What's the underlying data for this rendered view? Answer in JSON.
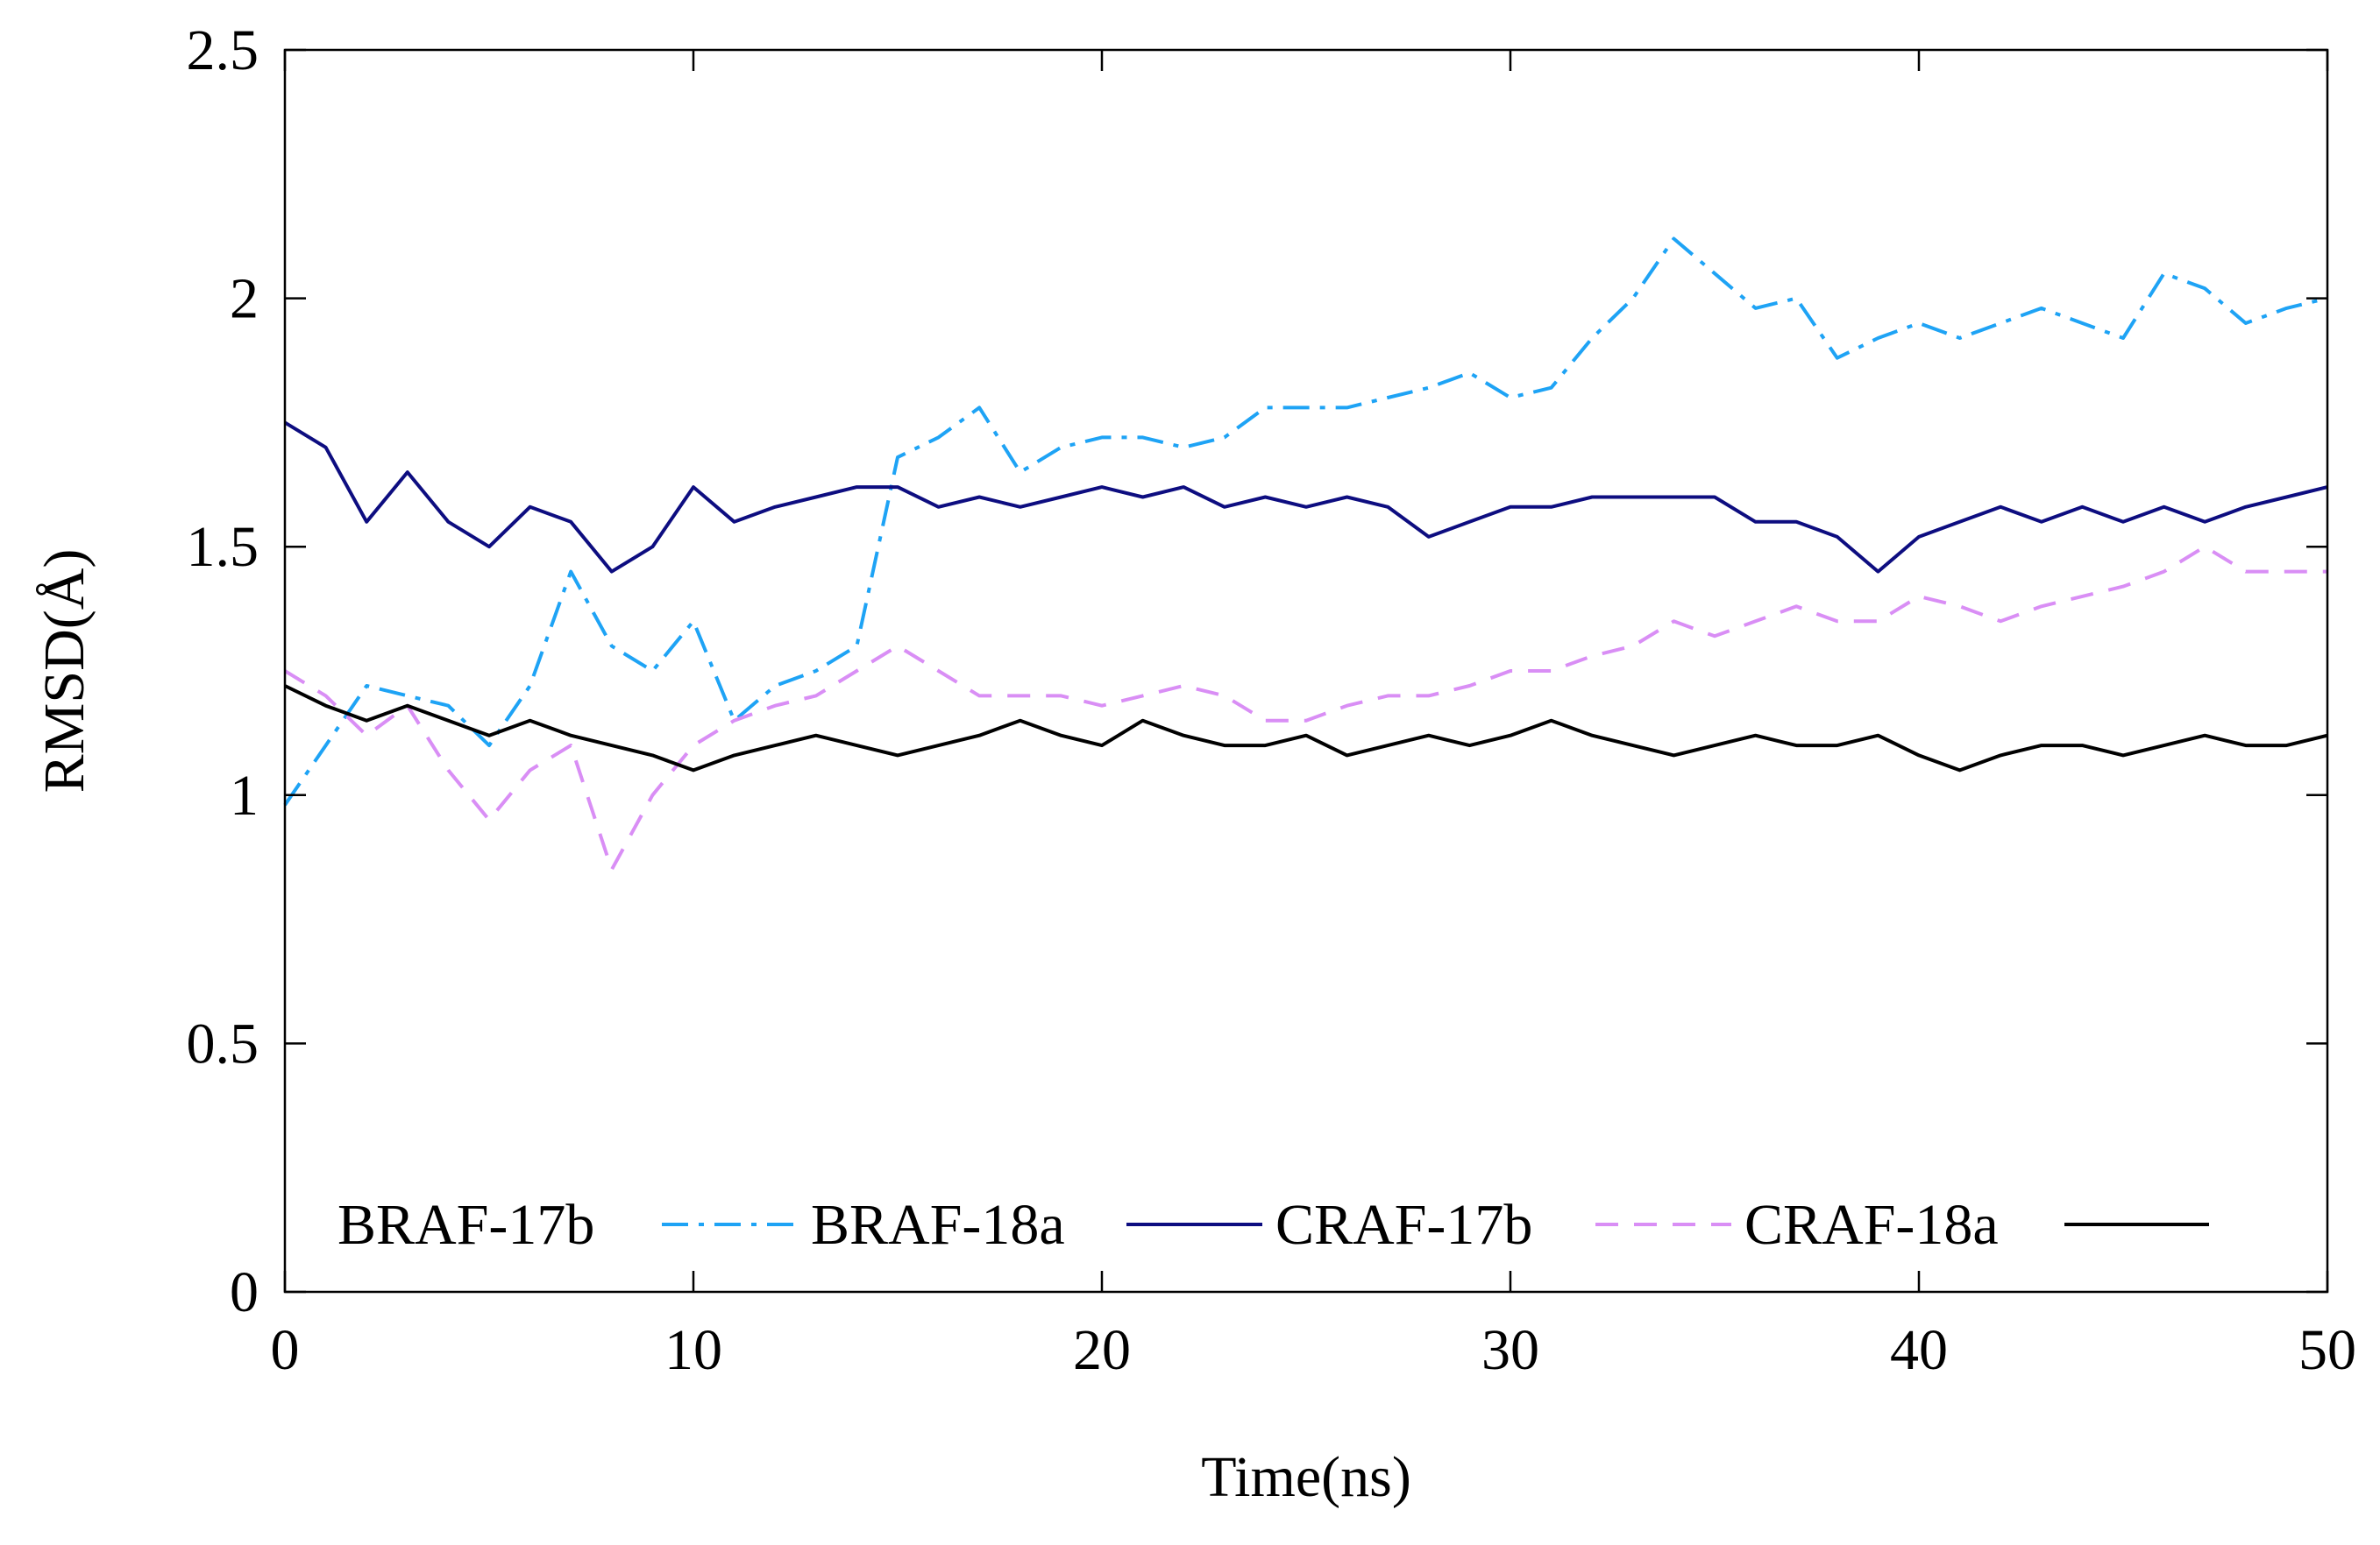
{
  "chart_data": {
    "type": "line",
    "title": "",
    "xlabel": "Time(ns)",
    "ylabel": "RMSD(Å)",
    "xlim": [
      0,
      50
    ],
    "ylim": [
      0,
      2.5
    ],
    "x_ticks": [
      0,
      10,
      20,
      30,
      40,
      50
    ],
    "x_tick_labels": [
      "0",
      "10",
      "20",
      "30",
      "40",
      "50"
    ],
    "y_ticks": [
      0,
      0.5,
      1,
      1.5,
      2,
      2.5
    ],
    "y_tick_labels": [
      "0",
      "0.5",
      "1",
      "1.5",
      "2",
      "2.5"
    ],
    "grid": false,
    "legend_position": "bottom",
    "series": [
      {
        "name": "BRAF-17b",
        "color": "#1ea3f5",
        "dash": "dashdot",
        "x": [
          0,
          1,
          2,
          3,
          4,
          5,
          6,
          7,
          8,
          9,
          10,
          11,
          12,
          13,
          14,
          15,
          16,
          17,
          18,
          19,
          20,
          21,
          22,
          23,
          24,
          25,
          26,
          27,
          28,
          29,
          30,
          31,
          32,
          33,
          34,
          35,
          36,
          37,
          38,
          39,
          40,
          41,
          42,
          43,
          44,
          45,
          46,
          47,
          48,
          49,
          50
        ],
        "values": [
          0.98,
          1.1,
          1.22,
          1.2,
          1.18,
          1.1,
          1.22,
          1.45,
          1.3,
          1.25,
          1.35,
          1.15,
          1.22,
          1.25,
          1.3,
          1.68,
          1.72,
          1.78,
          1.65,
          1.7,
          1.72,
          1.72,
          1.7,
          1.72,
          1.78,
          1.78,
          1.78,
          1.8,
          1.82,
          1.85,
          1.8,
          1.82,
          1.92,
          2.0,
          2.12,
          2.05,
          1.98,
          2.0,
          1.88,
          1.92,
          1.95,
          1.92,
          1.95,
          1.98,
          1.95,
          1.92,
          2.05,
          2.02,
          1.95,
          1.98,
          2.0
        ]
      },
      {
        "name": "BRAF-18a",
        "color": "#0d0d80",
        "dash": "solid",
        "x": [
          0,
          1,
          2,
          3,
          4,
          5,
          6,
          7,
          8,
          9,
          10,
          11,
          12,
          13,
          14,
          15,
          16,
          17,
          18,
          19,
          20,
          21,
          22,
          23,
          24,
          25,
          26,
          27,
          28,
          29,
          30,
          31,
          32,
          33,
          34,
          35,
          36,
          37,
          38,
          39,
          40,
          41,
          42,
          43,
          44,
          45,
          46,
          47,
          48,
          49,
          50
        ],
        "values": [
          1.75,
          1.7,
          1.55,
          1.65,
          1.55,
          1.5,
          1.58,
          1.55,
          1.45,
          1.5,
          1.62,
          1.55,
          1.58,
          1.6,
          1.62,
          1.62,
          1.58,
          1.6,
          1.58,
          1.6,
          1.62,
          1.6,
          1.62,
          1.58,
          1.6,
          1.58,
          1.6,
          1.58,
          1.52,
          1.55,
          1.58,
          1.58,
          1.6,
          1.6,
          1.6,
          1.6,
          1.55,
          1.55,
          1.52,
          1.45,
          1.52,
          1.55,
          1.58,
          1.55,
          1.58,
          1.55,
          1.58,
          1.55,
          1.58,
          1.6,
          1.62
        ]
      },
      {
        "name": "CRAF-17b",
        "color": "#d98ef5",
        "dash": "dashed",
        "x": [
          0,
          1,
          2,
          3,
          4,
          5,
          6,
          7,
          8,
          9,
          10,
          11,
          12,
          13,
          14,
          15,
          16,
          17,
          18,
          19,
          20,
          21,
          22,
          23,
          24,
          25,
          26,
          27,
          28,
          29,
          30,
          31,
          32,
          33,
          34,
          35,
          36,
          37,
          38,
          39,
          40,
          41,
          42,
          43,
          44,
          45,
          46,
          47,
          48,
          49,
          50
        ],
        "values": [
          1.25,
          1.2,
          1.12,
          1.18,
          1.05,
          0.95,
          1.05,
          1.1,
          0.85,
          1.0,
          1.1,
          1.15,
          1.18,
          1.2,
          1.25,
          1.3,
          1.25,
          1.2,
          1.2,
          1.2,
          1.18,
          1.2,
          1.22,
          1.2,
          1.15,
          1.15,
          1.18,
          1.2,
          1.2,
          1.22,
          1.25,
          1.25,
          1.28,
          1.3,
          1.35,
          1.32,
          1.35,
          1.38,
          1.35,
          1.35,
          1.4,
          1.38,
          1.35,
          1.38,
          1.4,
          1.42,
          1.45,
          1.5,
          1.45,
          1.45,
          1.45
        ]
      },
      {
        "name": "CRAF-18a",
        "color": "#000000",
        "dash": "solid",
        "x": [
          0,
          1,
          2,
          3,
          4,
          5,
          6,
          7,
          8,
          9,
          10,
          11,
          12,
          13,
          14,
          15,
          16,
          17,
          18,
          19,
          20,
          21,
          22,
          23,
          24,
          25,
          26,
          27,
          28,
          29,
          30,
          31,
          32,
          33,
          34,
          35,
          36,
          37,
          38,
          39,
          40,
          41,
          42,
          43,
          44,
          45,
          46,
          47,
          48,
          49,
          50
        ],
        "values": [
          1.22,
          1.18,
          1.15,
          1.18,
          1.15,
          1.12,
          1.15,
          1.12,
          1.1,
          1.08,
          1.05,
          1.08,
          1.1,
          1.12,
          1.1,
          1.08,
          1.1,
          1.12,
          1.15,
          1.12,
          1.1,
          1.15,
          1.12,
          1.1,
          1.1,
          1.12,
          1.08,
          1.1,
          1.12,
          1.1,
          1.12,
          1.15,
          1.12,
          1.1,
          1.08,
          1.1,
          1.12,
          1.1,
          1.1,
          1.12,
          1.08,
          1.05,
          1.08,
          1.1,
          1.1,
          1.08,
          1.1,
          1.12,
          1.1,
          1.1,
          1.12
        ]
      }
    ]
  }
}
